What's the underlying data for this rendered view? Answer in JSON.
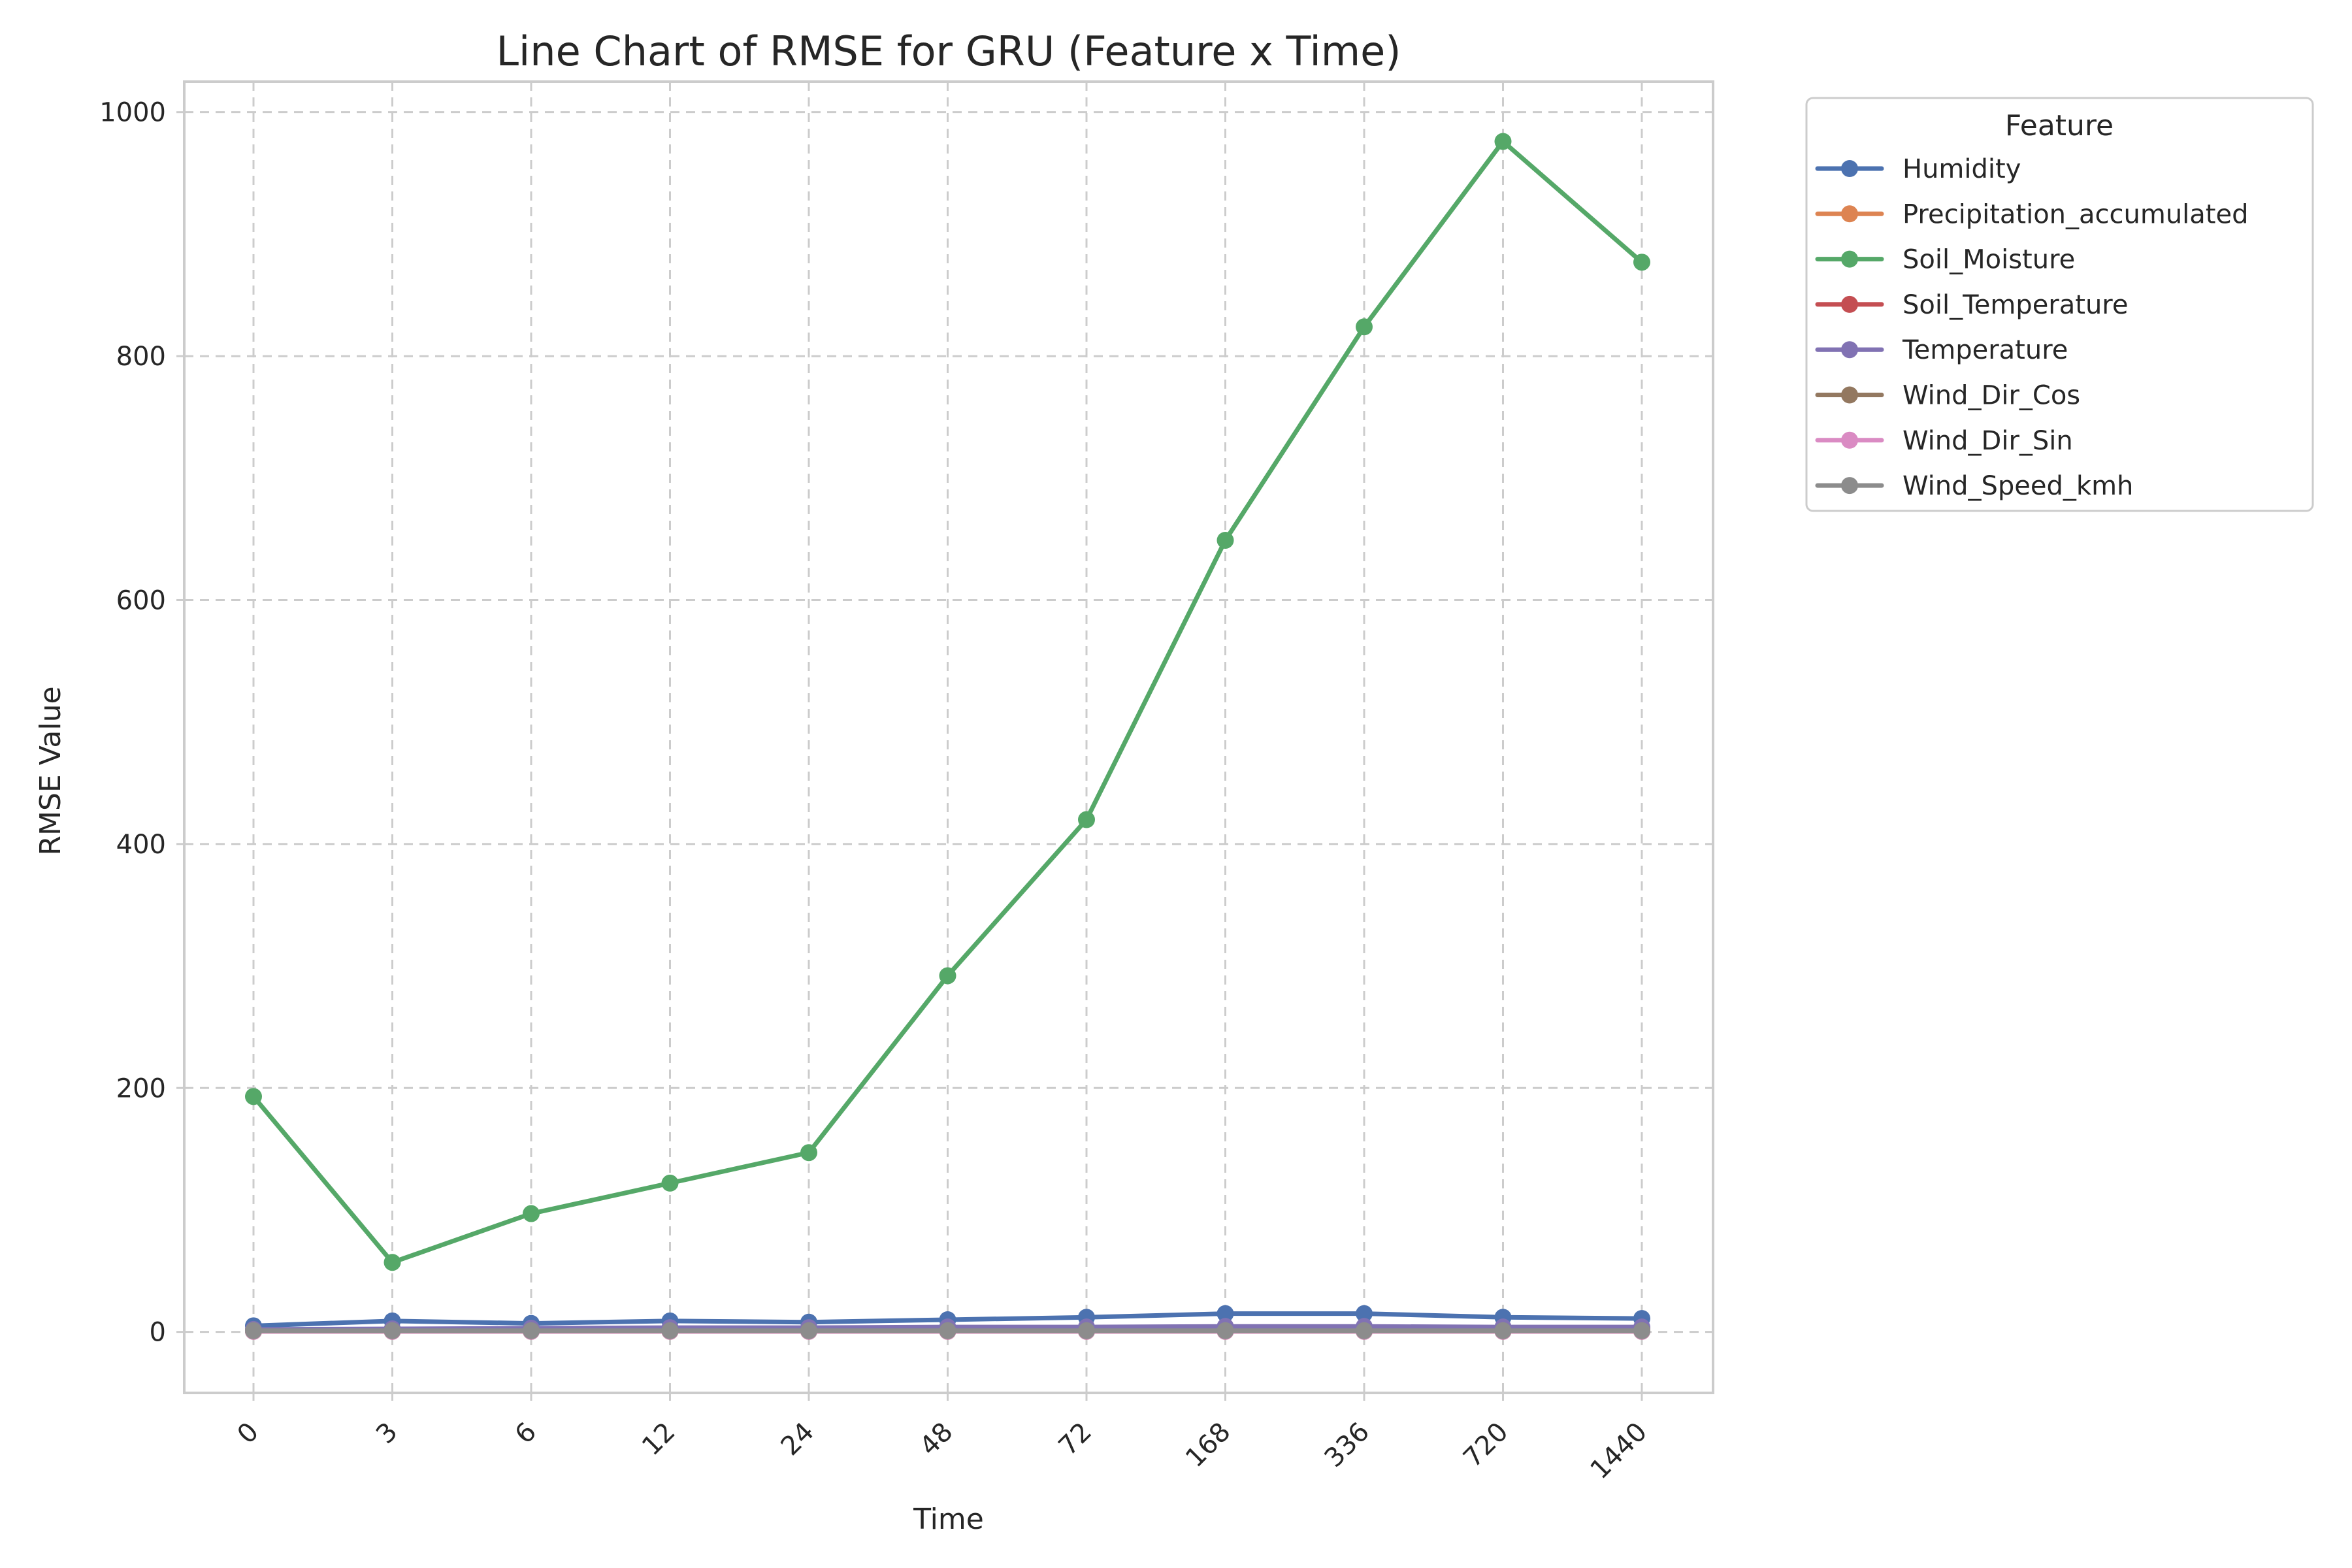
{
  "chart_data": {
    "type": "line",
    "title": "Line Chart of RMSE for GRU (Feature x Time)",
    "xlabel": "Time",
    "ylabel": "RMSE Value",
    "x": [
      "0",
      "3",
      "6",
      "12",
      "24",
      "48",
      "72",
      "168",
      "336",
      "720",
      "1440"
    ],
    "x_scale": "categorical",
    "ylim": [
      -50,
      1025
    ],
    "yticks": [
      0,
      200,
      400,
      600,
      800,
      1000
    ],
    "grid": true,
    "legend": {
      "title": "Feature",
      "placement": "outside-top-right"
    },
    "series": [
      {
        "name": "Humidity",
        "color": "#4c72b0",
        "values": [
          5,
          9,
          7,
          9,
          8,
          10,
          12,
          15,
          15,
          12,
          11
        ]
      },
      {
        "name": "Precipitation_accumulated",
        "color": "#dd8452",
        "values": [
          0.5,
          0.5,
          0.5,
          0.5,
          0.5,
          0.5,
          0.5,
          0.5,
          0.5,
          0.5,
          0.5
        ]
      },
      {
        "name": "Soil_Moisture",
        "color": "#55a868",
        "values": [
          193,
          57,
          97,
          122,
          147,
          292,
          420,
          649,
          824,
          976,
          877
        ]
      },
      {
        "name": "Soil_Temperature",
        "color": "#c44e52",
        "values": [
          1.5,
          2,
          2,
          2.5,
          2.5,
          3,
          3,
          3.5,
          3.5,
          3,
          3
        ]
      },
      {
        "name": "Temperature",
        "color": "#8172b3",
        "values": [
          2,
          2.5,
          3,
          3.5,
          3.5,
          4,
          4,
          4.5,
          4.5,
          4,
          4
        ]
      },
      {
        "name": "Wind_Dir_Cos",
        "color": "#937860",
        "values": [
          0.5,
          0.5,
          0.5,
          0.5,
          0.5,
          0.5,
          0.5,
          0.5,
          0.5,
          0.5,
          0.5
        ]
      },
      {
        "name": "Wind_Dir_Sin",
        "color": "#da8bc3",
        "values": [
          0.5,
          0.5,
          0.5,
          0.5,
          0.5,
          0.5,
          0.5,
          0.5,
          0.5,
          0.5,
          0.5
        ]
      },
      {
        "name": "Wind_Speed_kmh",
        "color": "#8c8c8c",
        "values": [
          1,
          1,
          1,
          1,
          1,
          1,
          1,
          1,
          1,
          1,
          1
        ]
      }
    ]
  }
}
